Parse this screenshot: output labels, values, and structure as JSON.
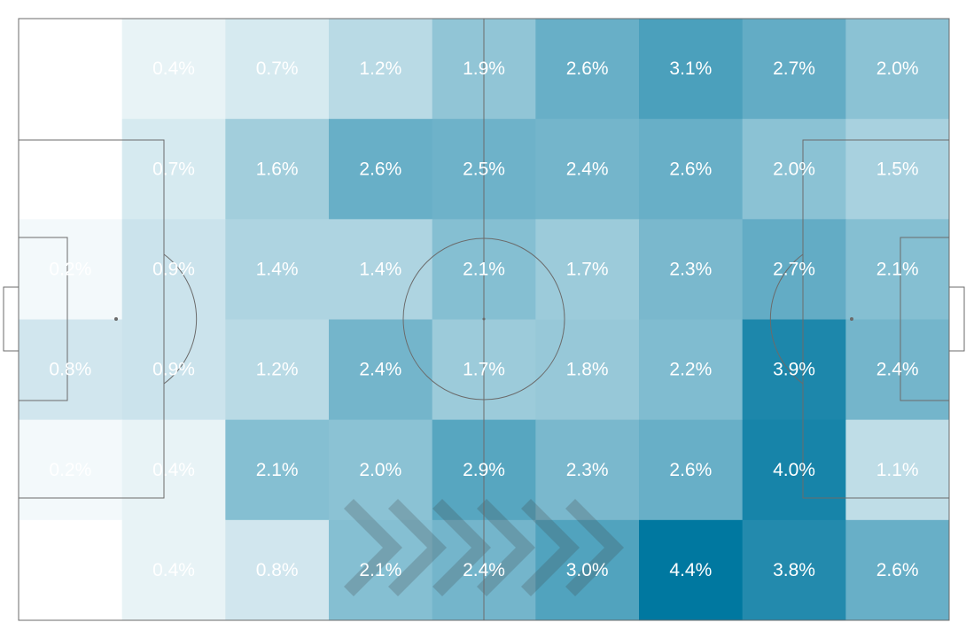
{
  "chart_data": {
    "type": "heatmap",
    "title": "",
    "xlabel": "",
    "ylabel": "",
    "legend": "none",
    "grid": false,
    "n_cols": 9,
    "n_rows": 6,
    "cell_color_range": [
      "#ffffff",
      "#0078a0"
    ],
    "value_max": 4.4,
    "attack_direction": "right",
    "rows": [
      {
        "values": [
          0.0,
          0.4,
          0.7,
          1.2,
          1.9,
          2.6,
          3.1,
          2.7,
          2.0
        ],
        "labels": [
          "",
          "0.4%",
          "0.7%",
          "1.2%",
          "1.9%",
          "2.6%",
          "3.1%",
          "2.7%",
          "2.0%"
        ]
      },
      {
        "values": [
          0.0,
          0.7,
          1.6,
          2.6,
          2.5,
          2.4,
          2.6,
          2.0,
          1.5
        ],
        "labels": [
          "",
          "0.7%",
          "1.6%",
          "2.6%",
          "2.5%",
          "2.4%",
          "2.6%",
          "2.0%",
          "1.5%"
        ]
      },
      {
        "values": [
          0.2,
          0.9,
          1.4,
          1.4,
          2.1,
          1.7,
          2.3,
          2.7,
          2.1
        ],
        "labels": [
          "0.2%",
          "0.9%",
          "1.4%",
          "1.4%",
          "2.1%",
          "1.7%",
          "2.3%",
          "2.7%",
          "2.1%"
        ]
      },
      {
        "values": [
          0.8,
          0.9,
          1.2,
          2.4,
          1.7,
          1.8,
          2.2,
          3.9,
          2.4
        ],
        "labels": [
          "0.8%",
          "0.9%",
          "1.2%",
          "2.4%",
          "1.7%",
          "1.8%",
          "2.2%",
          "3.9%",
          "2.4%"
        ]
      },
      {
        "values": [
          0.2,
          0.4,
          2.1,
          2.0,
          2.9,
          2.3,
          2.6,
          4.0,
          1.1
        ],
        "labels": [
          "0.2%",
          "0.4%",
          "2.1%",
          "2.0%",
          "2.9%",
          "2.3%",
          "2.6%",
          "4.0%",
          "1.1%"
        ]
      },
      {
        "values": [
          0.0,
          0.4,
          0.8,
          2.1,
          2.4,
          3.0,
          4.4,
          3.8,
          2.6
        ],
        "labels": [
          "",
          "0.4%",
          "0.8%",
          "2.1%",
          "2.4%",
          "3.0%",
          "4.4%",
          "3.8%",
          "2.6%"
        ]
      }
    ]
  }
}
